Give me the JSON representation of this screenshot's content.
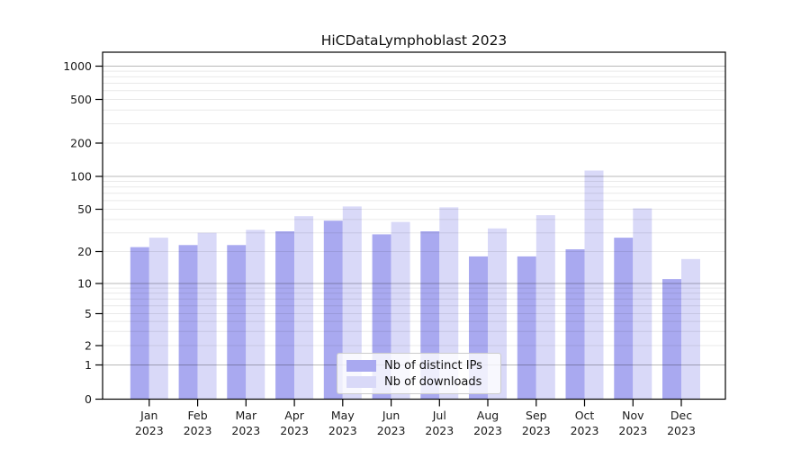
{
  "chart_data": {
    "type": "bar",
    "title": "HiCDataLymphoblast 2023",
    "categories": [
      "Jan 2023",
      "Feb 2023",
      "Mar 2023",
      "Apr 2023",
      "May 2023",
      "Jun 2023",
      "Jul 2023",
      "Aug 2023",
      "Sep 2023",
      "Oct 2023",
      "Nov 2023",
      "Dec 2023"
    ],
    "series": [
      {
        "name": "Nb of distinct IPs",
        "color": "#a9a9f0",
        "values": [
          22,
          23,
          23,
          31,
          39,
          29,
          31,
          18,
          18,
          21,
          27,
          11
        ]
      },
      {
        "name": "Nb of downloads",
        "color": "#d9d9f8",
        "values": [
          27,
          30,
          32,
          43,
          53,
          38,
          52,
          33,
          44,
          113,
          51,
          17
        ]
      }
    ],
    "xlabel": "",
    "ylabel": "",
    "yticks": [
      0,
      1,
      2,
      5,
      10,
      20,
      50,
      100,
      200,
      500,
      1000
    ],
    "ylim": [
      0,
      1300
    ],
    "scale": "symlog",
    "grid": "horizontal major and log-minor gridlines",
    "legend_position": "lower center"
  },
  "colors": {
    "distinct_ips_bar": "#a9a9f0",
    "downloads_bar": "#d9d9f8",
    "major_gridline": "rgba(0,0,0,0.28)",
    "minor_gridline": "rgba(0,0,0,0.085)",
    "axis_spine": "#000000",
    "tick_label": "#1a1a1a"
  }
}
